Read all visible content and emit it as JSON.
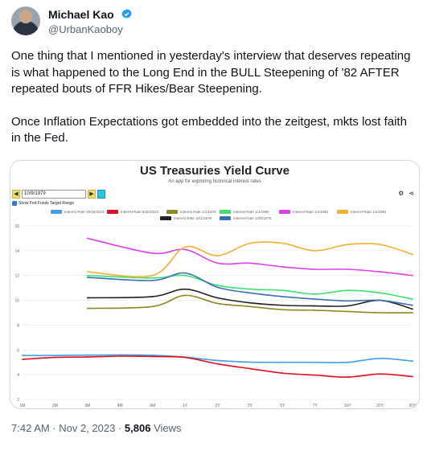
{
  "author": {
    "name": "Michael Kao",
    "handle": "@UrbanKaoboy",
    "verified_color": "#1d9bf0"
  },
  "tweet": {
    "paragraphs": [
      "One thing that I mentioned in yesterday's interview that deserves repeating is what happened to the Long End in the BULL Steepening of '82 AFTER repeated bouts of FFR Hikes/Bear Steepening.",
      "Once Inflation Expectations got embedded into the zeitgest, mkts lost faith in the Fed."
    ]
  },
  "media": {
    "app": {
      "title": "US Treasuries Yield Curve",
      "subtitle": "An app for exploring historical interest rates",
      "date_value": "10/9/1979",
      "prev_label": "◀",
      "next_label": "▶",
      "ffr_label": "Show Fed Funds Target Range"
    }
  },
  "chart_data": {
    "type": "line",
    "categories": [
      "1M",
      "2M",
      "3M",
      "4M",
      "6M",
      "1Y",
      "2Y",
      "3Y",
      "5Y",
      "7Y",
      "10Y",
      "20Y",
      "30Y"
    ],
    "ylim": [
      2,
      16
    ],
    "yticks": [
      2,
      4,
      6,
      8,
      10,
      12,
      14,
      16
    ],
    "grid": "horizontal",
    "legend_position": "top",
    "series": [
      {
        "name": "Interest Rate 10/19/2023",
        "color": "#3ea0e8",
        "values": [
          5.55,
          5.55,
          5.58,
          5.6,
          5.57,
          5.42,
          5.15,
          5.02,
          5.0,
          5.0,
          5.0,
          5.32,
          5.1
        ]
      },
      {
        "name": "Interest Rate 6/30/2023",
        "color": "#e01020",
        "values": [
          5.24,
          5.4,
          5.43,
          5.5,
          5.47,
          5.4,
          4.87,
          4.49,
          4.13,
          3.97,
          3.81,
          4.06,
          3.85
        ]
      },
      {
        "name": "Interest Rate 1/1/1979",
        "color": "#8f8a20",
        "values": [
          null,
          null,
          9.35,
          null,
          9.5,
          10.4,
          9.75,
          9.5,
          9.25,
          9.2,
          9.1,
          9.0,
          9.0
        ]
      },
      {
        "name": "Interest Rate 1/1/1980",
        "color": "#40e070",
        "values": [
          null,
          null,
          12.0,
          null,
          11.8,
          12.0,
          11.2,
          10.9,
          10.8,
          10.5,
          10.8,
          10.6,
          10.1
        ]
      },
      {
        "name": "Interest Rate 1/1/1981",
        "color": "#e040e8",
        "values": [
          null,
          null,
          15.0,
          null,
          13.8,
          14.1,
          13.0,
          13.0,
          12.7,
          12.5,
          12.5,
          12.3,
          12.0
        ]
      },
      {
        "name": "Interest Rate 1/1/1982",
        "color": "#f0b030",
        "values": [
          null,
          null,
          12.3,
          null,
          12.0,
          14.3,
          13.6,
          14.6,
          14.6,
          14.0,
          14.5,
          14.5,
          13.7
        ]
      },
      {
        "name": "Interest Rate 10/1/1979",
        "color": "#222222",
        "values": [
          null,
          null,
          10.2,
          null,
          10.3,
          10.9,
          10.2,
          9.8,
          9.6,
          9.55,
          9.55,
          10.0,
          9.3
        ]
      },
      {
        "name": "Interest Rate 10/9/1979",
        "color": "#3a6fb5",
        "values": [
          null,
          null,
          11.85,
          null,
          11.6,
          12.2,
          11.05,
          10.6,
          10.3,
          10.1,
          9.95,
          10.0,
          9.6
        ]
      }
    ]
  },
  "footer": {
    "time": "7:42 AM · Nov 2, 2023 · ",
    "views_count": "5,806",
    "views_label": " Views"
  }
}
